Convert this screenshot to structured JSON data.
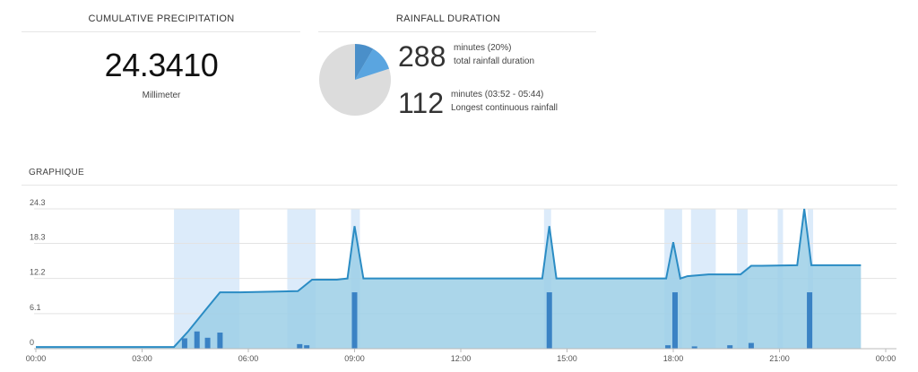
{
  "cumulative": {
    "title": "CUMULATIVE PRECIPITATION",
    "value": "24.3410",
    "unit": "Millimeter"
  },
  "duration": {
    "title": "RAINFALL DURATION",
    "total_value": "288",
    "total_line1": "minutes (20%)",
    "total_line2": "total rainfall duration",
    "longest_value": "112",
    "longest_line1": "minutes (03:52 - 05:44)",
    "longest_line2": "Longest continuous rainfall",
    "pie_fraction": 0.2,
    "colors": {
      "rain_dark": "#4a8fc9",
      "rain_light": "#5aa5e0",
      "dry": "#dcdcdc"
    }
  },
  "graphique": {
    "title": "GRAPHIQUE"
  },
  "chart_data": {
    "type": "area",
    "title": "",
    "xlabel": "",
    "ylabel": "",
    "x_unit": "hours",
    "xlim": [
      0,
      24
    ],
    "ylim": [
      0,
      24.3
    ],
    "x_tick_labels": [
      "00:00",
      "03:00",
      "06:00",
      "09:00",
      "12:00",
      "15:00",
      "18:00",
      "21:00",
      "00:00"
    ],
    "y_ticks": [
      0,
      6.1,
      12.2,
      18.3,
      24.3
    ],
    "y_tick_labels": [
      "0",
      "6.1",
      "12.2",
      "18.3",
      "24.3"
    ],
    "series": [
      {
        "name": "",
        "kind": "area-line",
        "x": [
          0,
          3.9,
          4.3,
          4.8,
          5.2,
          5.75,
          7.4,
          7.6,
          7.8,
          8.5,
          8.8,
          9.0,
          9.25,
          14.3,
          14.5,
          14.7,
          17.8,
          18.0,
          18.2,
          18.4,
          19.0,
          19.9,
          20.2,
          20.5,
          21.5,
          21.7,
          21.9,
          23.3
        ],
        "values": [
          0.3,
          0.3,
          3.0,
          6.8,
          9.8,
          9.8,
          10.0,
          11.0,
          12.0,
          12.0,
          12.2,
          21.3,
          12.2,
          12.2,
          21.3,
          12.2,
          12.2,
          18.5,
          12.2,
          12.6,
          12.9,
          12.9,
          14.4,
          14.4,
          14.5,
          24.3,
          14.5,
          14.5
        ]
      },
      {
        "name": "",
        "kind": "bar",
        "x": [
          4.2,
          4.55,
          4.85,
          5.2,
          7.45,
          7.65,
          9.0,
          14.5,
          17.85,
          18.05,
          18.6,
          19.6,
          20.2,
          21.85
        ],
        "values": [
          1.8,
          3.0,
          1.9,
          2.8,
          0.8,
          0.6,
          9.8,
          9.8,
          0.6,
          9.8,
          0.4,
          0.6,
          1.0,
          9.8
        ]
      }
    ],
    "rain_bands": [
      [
        3.9,
        5.75
      ],
      [
        7.1,
        7.9
      ],
      [
        8.9,
        9.15
      ],
      [
        14.35,
        14.55
      ],
      [
        17.75,
        18.25
      ],
      [
        18.5,
        19.2
      ],
      [
        19.8,
        20.1
      ],
      [
        20.95,
        21.1
      ],
      [
        21.8,
        21.95
      ]
    ],
    "colors": {
      "area": "#9ccfe6",
      "line": "#2b8cc4",
      "bar": "#3a82c4",
      "band": "#dcebfa",
      "grid": "#e3e3e3",
      "axis": "#bbbbbb"
    }
  }
}
